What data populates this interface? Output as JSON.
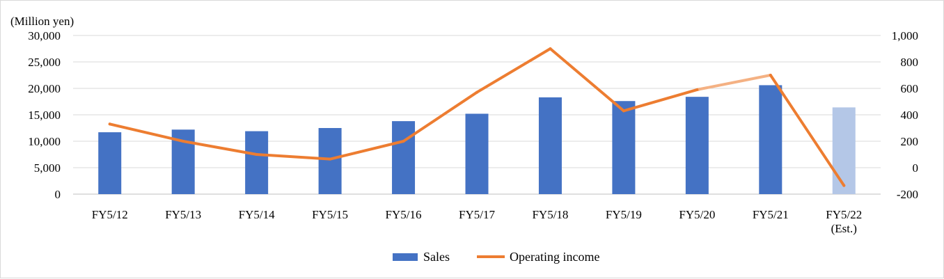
{
  "chart_data": {
    "type": "bar",
    "unit_label": "(Million yen)",
    "categories": [
      "FY5/12",
      "FY5/13",
      "FY5/14",
      "FY5/15",
      "FY5/16",
      "FY5/17",
      "FY5/18",
      "FY5/19",
      "FY5/20",
      "FY5/21",
      "FY5/22"
    ],
    "category_sublabels": [
      "",
      "",
      "",
      "",
      "",
      "",
      "",
      "",
      "",
      "",
      "(Est.)"
    ],
    "series": [
      {
        "name": "Sales",
        "type": "bar",
        "axis": "left",
        "color": "#4472c4",
        "estimate_color": "#b4c7e7",
        "values": [
          11700,
          12200,
          11900,
          12500,
          13800,
          15200,
          18300,
          17600,
          18400,
          20600,
          16400
        ]
      },
      {
        "name": "Operating income",
        "type": "line",
        "axis": "right",
        "color": "#ed7d31",
        "estimate_color": "#f4b183",
        "values": [
          330,
          200,
          100,
          65,
          200,
          570,
          900,
          430,
          590,
          700,
          -135
        ]
      }
    ],
    "estimate_from_index": 10,
    "y_left": {
      "ylim": [
        0,
        30000
      ],
      "ticks": [
        "0",
        "5,000",
        "10,000",
        "15,000",
        "20,000",
        "25,000",
        "30,000"
      ]
    },
    "y_right": {
      "ylim": [
        -200,
        1000
      ],
      "ticks": [
        "-200",
        "0",
        "200",
        "400",
        "600",
        "800",
        "1,000"
      ],
      "negative_color": "#ff0000"
    },
    "grid": true,
    "legend": "bottom-center"
  }
}
